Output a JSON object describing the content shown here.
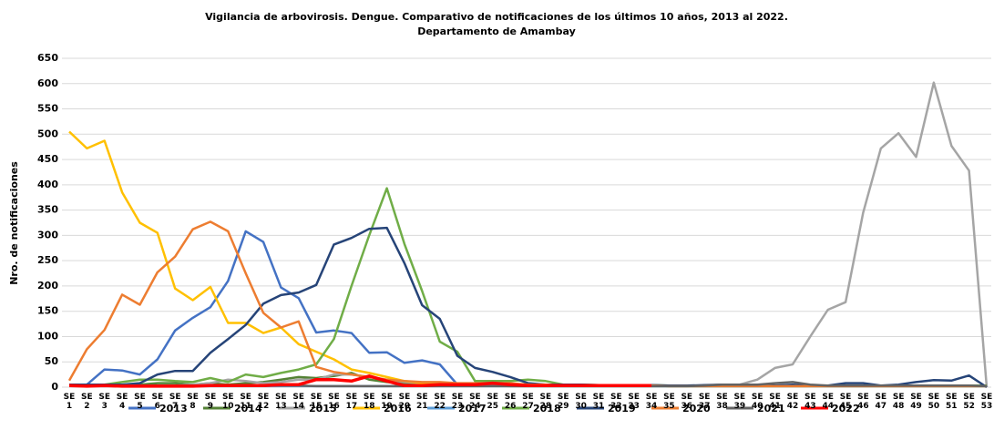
{
  "chart_data": {
    "type": "line",
    "title": [
      "Vigilancia de arbovirosis. Dengue. Comparativo de notificaciones de los últimos 10 años, 2013 al 2022.",
      "Departamento de Amambay"
    ],
    "y_label": "Nro. de notificaciones",
    "categories": [
      "SE 1",
      "SE 2",
      "SE 3",
      "SE 4",
      "SE 5",
      "SE 6",
      "SE 7",
      "SE 8",
      "SE 9",
      "SE 10",
      "SE 11",
      "SE 12",
      "SE 13",
      "SE 14",
      "SE 15",
      "SE 16",
      "SE 17",
      "SE 18",
      "SE 19",
      "SE 20",
      "SE 21",
      "SE 22",
      "SE 23",
      "SE 24",
      "SE 25",
      "SE 26",
      "SE 27",
      "SE 28",
      "SE 29",
      "SE 30",
      "SE 31",
      "SE 32",
      "SE 33",
      "SE 34",
      "SE 35",
      "SE 36",
      "SE 37",
      "SE 38",
      "SE 39",
      "SE 40",
      "SE 41",
      "SE 42",
      "SE 43",
      "SE 44",
      "SE 45",
      "SE 46",
      "SE 47",
      "SE 48",
      "SE 49",
      "SE 50",
      "SE 51",
      "SE 52",
      "SE 53"
    ],
    "ylim": [
      0,
      650
    ],
    "yticks": [
      0,
      50,
      100,
      150,
      200,
      250,
      300,
      350,
      400,
      450,
      500,
      550,
      600,
      650
    ],
    "grid": true,
    "series": [
      {
        "name": "2013",
        "color": "#4472c4",
        "values": [
          5,
          5,
          35,
          33,
          25,
          55,
          112,
          137,
          158,
          210,
          308,
          287,
          197,
          176,
          108,
          112,
          107,
          68,
          69,
          48,
          53,
          45,
          5,
          5,
          5,
          5,
          3,
          3,
          3,
          3,
          3,
          3,
          3,
          3,
          2,
          2,
          2,
          2,
          2,
          2,
          2,
          2,
          2,
          2,
          2,
          2,
          2,
          2,
          2,
          2,
          2,
          2,
          2
        ]
      },
      {
        "name": "2014",
        "color": "#548235",
        "values": [
          3,
          3,
          3,
          4,
          5,
          8,
          8,
          5,
          8,
          5,
          8,
          10,
          15,
          20,
          18,
          22,
          28,
          15,
          10,
          8,
          5,
          5,
          3,
          3,
          3,
          2,
          2,
          2,
          2,
          2,
          2,
          2,
          2,
          2,
          2,
          2,
          2,
          2,
          2,
          2,
          2,
          2,
          2,
          2,
          2,
          2,
          2,
          2,
          2,
          2,
          2,
          2,
          2
        ]
      },
      {
        "name": "2015",
        "color": "#a5a5a5",
        "values": [
          3,
          3,
          3,
          3,
          3,
          3,
          3,
          5,
          8,
          15,
          12,
          8,
          10,
          15,
          15,
          25,
          25,
          20,
          15,
          10,
          8,
          5,
          5,
          5,
          5,
          5,
          3,
          3,
          3,
          3,
          3,
          3,
          3,
          3,
          3,
          3,
          3,
          3,
          5,
          15,
          38,
          45,
          100,
          153,
          168,
          345,
          472,
          502,
          455,
          602,
          477,
          428,
          0
        ]
      },
      {
        "name": "2016",
        "color": "#ffc000",
        "values": [
          505,
          472,
          487,
          385,
          325,
          305,
          195,
          172,
          198,
          127,
          127,
          107,
          118,
          85,
          70,
          55,
          35,
          28,
          20,
          12,
          8,
          6,
          5,
          5,
          5,
          4,
          4,
          3,
          3,
          3,
          3,
          3,
          3,
          3,
          2,
          2,
          2,
          2,
          2,
          2,
          2,
          2,
          2,
          2,
          2,
          2,
          2,
          2,
          2,
          2,
          2,
          2,
          2
        ]
      },
      {
        "name": "2017",
        "color": "#5b9bd5",
        "values": [
          2,
          2,
          2,
          2,
          2,
          2,
          2,
          2,
          2,
          2,
          2,
          2,
          2,
          2,
          2,
          2,
          2,
          2,
          2,
          2,
          2,
          2,
          2,
          2,
          2,
          2,
          2,
          2,
          2,
          2,
          2,
          2,
          2,
          2,
          2,
          2,
          2,
          2,
          2,
          2,
          2,
          2,
          2,
          2,
          2,
          2,
          2,
          2,
          2,
          2,
          2,
          2,
          2
        ]
      },
      {
        "name": "2018",
        "color": "#70ad47",
        "values": [
          5,
          5,
          5,
          10,
          15,
          15,
          12,
          10,
          18,
          10,
          25,
          20,
          28,
          35,
          45,
          95,
          200,
          300,
          393,
          283,
          190,
          90,
          70,
          12,
          12,
          12,
          15,
          12,
          5,
          5,
          4,
          4,
          4,
          4,
          3,
          3,
          3,
          3,
          3,
          3,
          3,
          3,
          3,
          3,
          3,
          3,
          3,
          3,
          3,
          3,
          3,
          3,
          3
        ]
      },
      {
        "name": "2019",
        "color": "#264478",
        "values": [
          5,
          5,
          5,
          5,
          8,
          25,
          32,
          32,
          68,
          95,
          123,
          165,
          182,
          187,
          202,
          282,
          295,
          313,
          315,
          245,
          162,
          135,
          62,
          38,
          30,
          20,
          8,
          5,
          5,
          5,
          4,
          4,
          4,
          4,
          3,
          3,
          4,
          5,
          5,
          3,
          3,
          5,
          3,
          3,
          8,
          8,
          3,
          5,
          10,
          14,
          13,
          23,
          0
        ]
      },
      {
        "name": "2020",
        "color": "#ed7d31",
        "values": [
          13,
          75,
          113,
          183,
          163,
          227,
          258,
          312,
          327,
          308,
          225,
          147,
          118,
          130,
          40,
          30,
          25,
          20,
          15,
          12,
          10,
          10,
          8,
          8,
          8,
          8,
          5,
          5,
          3,
          3,
          3,
          3,
          3,
          3,
          2,
          2,
          2,
          2,
          2,
          2,
          2,
          2,
          2,
          2,
          2,
          2,
          2,
          2,
          2,
          2,
          2,
          2,
          2
        ]
      },
      {
        "name": "2021",
        "color": "#636363",
        "values": [
          3,
          3,
          3,
          3,
          3,
          3,
          3,
          3,
          3,
          3,
          3,
          3,
          3,
          3,
          2,
          2,
          2,
          2,
          2,
          2,
          2,
          2,
          2,
          2,
          2,
          2,
          2,
          2,
          2,
          2,
          2,
          2,
          2,
          2,
          2,
          2,
          3,
          5,
          5,
          5,
          8,
          10,
          5,
          3,
          3,
          3,
          3,
          3,
          3,
          3,
          3,
          3,
          2
        ]
      },
      {
        "name": "2022",
        "color": "#ff0000",
        "values": [
          3,
          2,
          3,
          2,
          2,
          2,
          2,
          2,
          3,
          3,
          3,
          3,
          5,
          5,
          15,
          15,
          12,
          22,
          12,
          3,
          3,
          5,
          5,
          5,
          8,
          5,
          3,
          3,
          3,
          3,
          3,
          3,
          3,
          3,
          null,
          null,
          null,
          null,
          null,
          null,
          null,
          null,
          null,
          null,
          null,
          null,
          null,
          null,
          null,
          null,
          null,
          null,
          null
        ]
      }
    ]
  }
}
